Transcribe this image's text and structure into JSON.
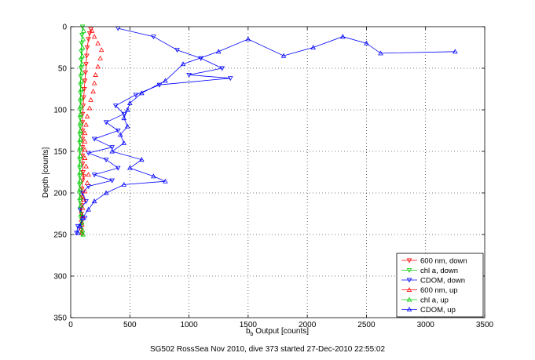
{
  "figure_caption": "SG502 RossSea Nov 2010, dive 373 started 27-Dec-2010 22:55:02",
  "chart_data": {
    "type": "scatter",
    "xlabel_main": "b",
    "xlabel_sub": "b",
    "xlabel_rest": " Output [counts]",
    "ylabel": "Depth [counts]",
    "xlim": [
      0,
      3500
    ],
    "ylim": [
      0,
      350
    ],
    "y_reversed": true,
    "grid": true,
    "legend_position": "bottom-right",
    "x_ticks": [
      0,
      500,
      1000,
      1500,
      2000,
      2500,
      3000,
      3500
    ],
    "y_ticks": [
      0,
      50,
      100,
      150,
      200,
      250,
      300,
      350
    ],
    "x_tick_labels": [
      "0",
      "500",
      "1000",
      "1500",
      "2000",
      "2500",
      "3000",
      "3500"
    ],
    "y_tick_labels": [
      "0",
      "50",
      "100",
      "150",
      "200",
      "250",
      "300",
      "350"
    ],
    "series": [
      {
        "name": "600 nm, down",
        "color": "#ff0000",
        "marker": "triangle-down",
        "line": true,
        "points": [
          [
            170,
            3
          ],
          [
            160,
            8
          ],
          [
            150,
            15
          ],
          [
            140,
            25
          ],
          [
            135,
            35
          ],
          [
            130,
            45
          ],
          [
            125,
            55
          ],
          [
            120,
            65
          ],
          [
            115,
            75
          ],
          [
            110,
            85
          ],
          [
            105,
            95
          ],
          [
            100,
            105
          ],
          [
            100,
            115
          ],
          [
            100,
            125
          ],
          [
            100,
            135
          ],
          [
            100,
            145
          ],
          [
            100,
            155
          ],
          [
            100,
            165
          ],
          [
            105,
            175
          ],
          [
            110,
            180
          ],
          [
            100,
            185
          ],
          [
            95,
            195
          ],
          [
            95,
            205
          ],
          [
            95,
            215
          ],
          [
            90,
            225
          ],
          [
            90,
            235
          ],
          [
            90,
            245
          ]
        ]
      },
      {
        "name": "chl a, down",
        "color": "#00cc00",
        "marker": "triangle-down",
        "line": true,
        "points": [
          [
            100,
            0
          ],
          [
            95,
            10
          ],
          [
            92,
            20
          ],
          [
            90,
            30
          ],
          [
            88,
            40
          ],
          [
            87,
            50
          ],
          [
            85,
            60
          ],
          [
            84,
            70
          ],
          [
            83,
            80
          ],
          [
            82,
            90
          ],
          [
            80,
            100
          ],
          [
            80,
            110
          ],
          [
            80,
            120
          ],
          [
            78,
            130
          ],
          [
            77,
            140
          ],
          [
            77,
            150
          ],
          [
            76,
            160
          ],
          [
            76,
            170
          ],
          [
            76,
            180
          ],
          [
            75,
            190
          ],
          [
            75,
            200
          ],
          [
            76,
            210
          ],
          [
            80,
            220
          ],
          [
            85,
            230
          ],
          [
            90,
            240
          ],
          [
            95,
            250
          ]
        ]
      },
      {
        "name": "CDOM, down",
        "color": "#0000ff",
        "marker": "triangle-down",
        "line": true,
        "points": [
          [
            400,
            2
          ],
          [
            700,
            12
          ],
          [
            900,
            28
          ],
          [
            1100,
            38
          ],
          [
            1280,
            50
          ],
          [
            1000,
            58
          ],
          [
            1350,
            62
          ],
          [
            750,
            70
          ],
          [
            550,
            82
          ],
          [
            380,
            95
          ],
          [
            450,
            105
          ],
          [
            300,
            115
          ],
          [
            400,
            125
          ],
          [
            200,
            135
          ],
          [
            350,
            145
          ],
          [
            150,
            152
          ],
          [
            300,
            160
          ],
          [
            400,
            170
          ],
          [
            200,
            178
          ],
          [
            350,
            185
          ],
          [
            150,
            192
          ],
          [
            100,
            200
          ],
          [
            130,
            210
          ],
          [
            80,
            220
          ],
          [
            120,
            230
          ],
          [
            60,
            240
          ],
          [
            50,
            248
          ]
        ]
      },
      {
        "name": "600 nm, up",
        "color": "#ff0000",
        "marker": "triangle-up",
        "line": false,
        "points": [
          [
            180,
            5
          ],
          [
            200,
            12
          ],
          [
            230,
            20
          ],
          [
            260,
            28
          ],
          [
            250,
            38
          ],
          [
            230,
            48
          ],
          [
            210,
            58
          ],
          [
            200,
            68
          ],
          [
            190,
            78
          ],
          [
            170,
            88
          ],
          [
            160,
            98
          ],
          [
            140,
            108
          ],
          [
            130,
            118
          ],
          [
            120,
            128
          ],
          [
            120,
            138
          ],
          [
            120,
            148
          ],
          [
            120,
            158
          ],
          [
            130,
            168
          ],
          [
            150,
            178
          ],
          [
            140,
            188
          ],
          [
            120,
            198
          ],
          [
            110,
            208
          ],
          [
            100,
            218
          ],
          [
            100,
            228
          ],
          [
            95,
            238
          ],
          [
            95,
            248
          ]
        ]
      },
      {
        "name": "chl a, up",
        "color": "#00cc00",
        "marker": "triangle-up",
        "line": false,
        "points": [
          [
            110,
            5
          ],
          [
            105,
            15
          ],
          [
            100,
            25
          ],
          [
            98,
            35
          ],
          [
            96,
            45
          ],
          [
            94,
            55
          ],
          [
            92,
            65
          ],
          [
            90,
            75
          ],
          [
            88,
            85
          ],
          [
            86,
            95
          ],
          [
            84,
            105
          ],
          [
            83,
            115
          ],
          [
            82,
            125
          ],
          [
            82,
            135
          ],
          [
            81,
            145
          ],
          [
            80,
            155
          ],
          [
            80,
            165
          ],
          [
            80,
            175
          ],
          [
            80,
            185
          ],
          [
            80,
            195
          ],
          [
            82,
            205
          ],
          [
            85,
            215
          ],
          [
            90,
            225
          ],
          [
            95,
            235
          ],
          [
            100,
            245
          ],
          [
            105,
            250
          ]
        ]
      },
      {
        "name": "CDOM, up",
        "color": "#0000ff",
        "marker": "triangle-up",
        "line": true,
        "points": [
          [
            3250,
            30
          ],
          [
            2620,
            32
          ],
          [
            2500,
            20
          ],
          [
            2300,
            12
          ],
          [
            2050,
            25
          ],
          [
            1800,
            35
          ],
          [
            1500,
            15
          ],
          [
            1250,
            30
          ],
          [
            950,
            45
          ],
          [
            800,
            65
          ],
          [
            600,
            80
          ],
          [
            500,
            92
          ],
          [
            480,
            100
          ],
          [
            450,
            110
          ],
          [
            480,
            120
          ],
          [
            420,
            130
          ],
          [
            450,
            140
          ],
          [
            350,
            150
          ],
          [
            600,
            160
          ],
          [
            500,
            170
          ],
          [
            700,
            180
          ],
          [
            800,
            186
          ],
          [
            450,
            190
          ],
          [
            300,
            200
          ],
          [
            200,
            210
          ],
          [
            150,
            220
          ],
          [
            100,
            230
          ],
          [
            80,
            240
          ],
          [
            60,
            248
          ]
        ]
      }
    ]
  }
}
